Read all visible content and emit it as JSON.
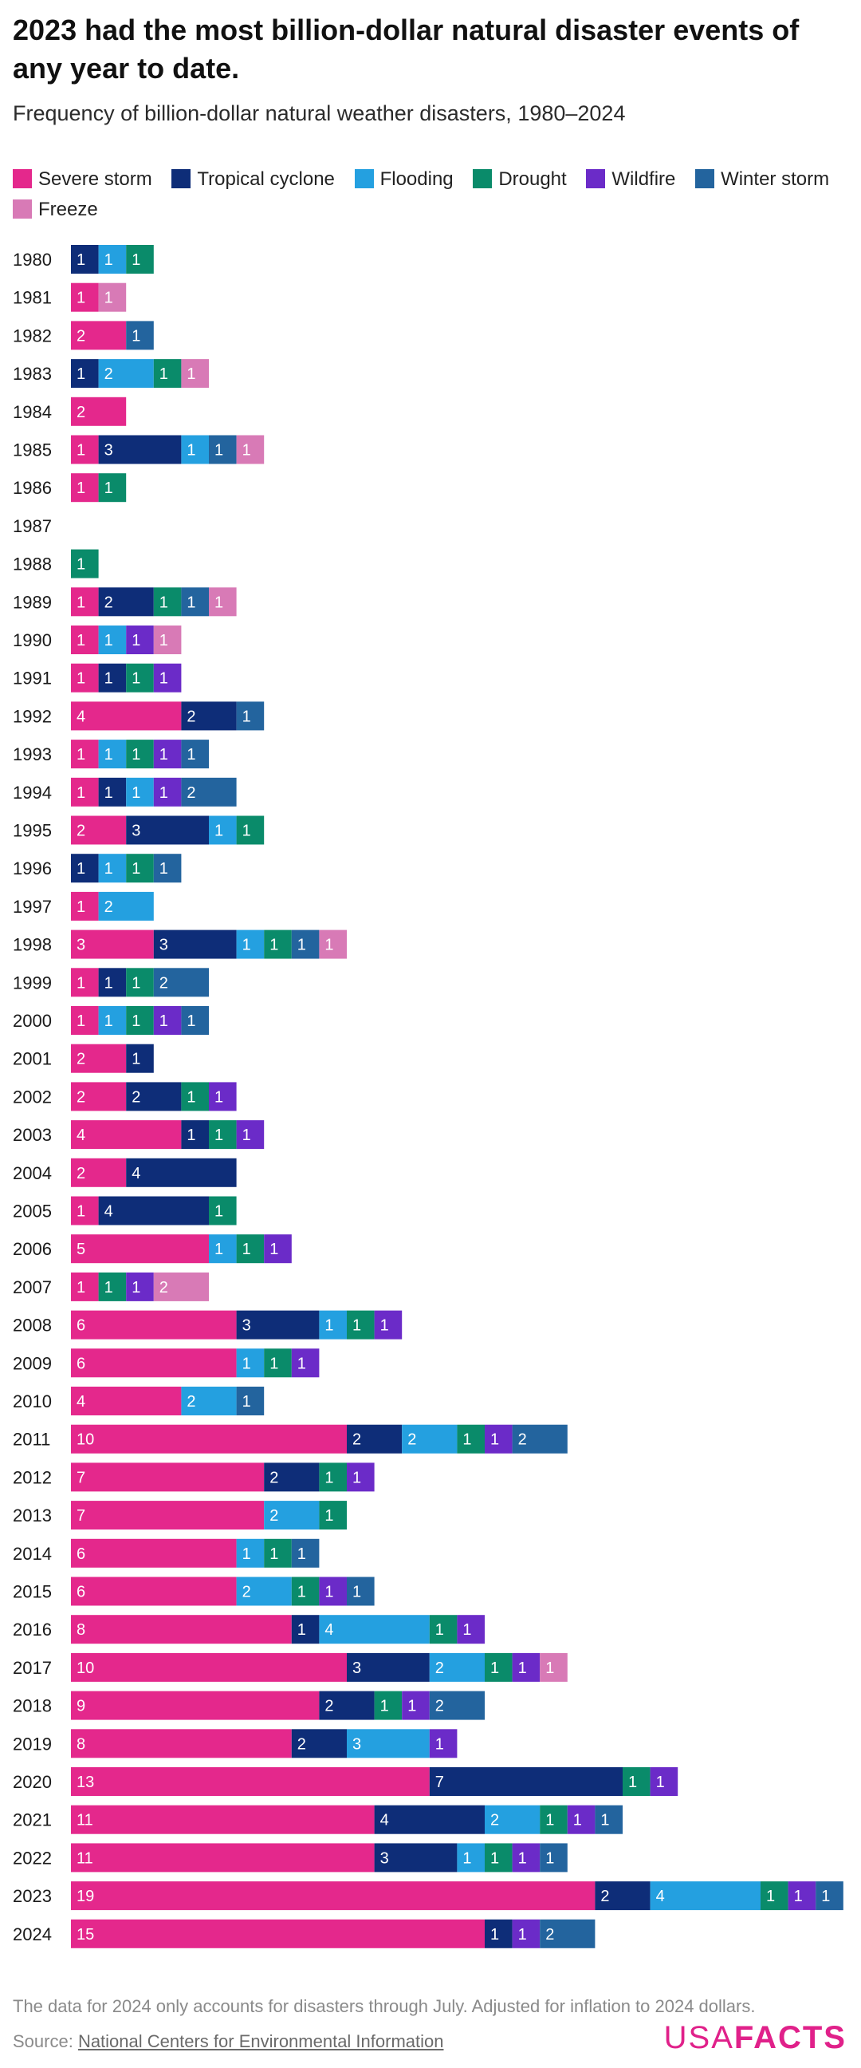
{
  "title": "2023 had the most billion-dollar natural disaster events of any year to date.",
  "subtitle": "Frequency of billion-dollar natural weather disasters, 1980–2024",
  "footnote": "The data for 2024 only accounts for disasters through July. Adjusted for inflation to 2024 dollars.",
  "source": {
    "label": "Source: ",
    "link_text": "National Centers for Environmental Information"
  },
  "brand": {
    "part1": "USA",
    "part2": "FACTS"
  },
  "chart_data": {
    "type": "bar",
    "orientation": "horizontal",
    "stacked": true,
    "grid": false,
    "legend_position": "top",
    "categories": [
      "1980",
      "1981",
      "1982",
      "1983",
      "1984",
      "1985",
      "1986",
      "1987",
      "1988",
      "1989",
      "1990",
      "1991",
      "1992",
      "1993",
      "1994",
      "1995",
      "1996",
      "1997",
      "1998",
      "1999",
      "2000",
      "2001",
      "2002",
      "2003",
      "2004",
      "2005",
      "2006",
      "2007",
      "2008",
      "2009",
      "2010",
      "2011",
      "2012",
      "2013",
      "2014",
      "2015",
      "2016",
      "2017",
      "2018",
      "2019",
      "2020",
      "2021",
      "2022",
      "2023",
      "2024"
    ],
    "series": [
      {
        "name": "Severe storm",
        "color": "#e4288c",
        "values": [
          0,
          1,
          2,
          0,
          2,
          1,
          1,
          0,
          0,
          1,
          1,
          1,
          4,
          1,
          1,
          2,
          0,
          1,
          3,
          1,
          1,
          2,
          2,
          4,
          2,
          1,
          5,
          1,
          6,
          6,
          4,
          10,
          7,
          7,
          6,
          6,
          8,
          10,
          9,
          8,
          13,
          11,
          11,
          19,
          15
        ]
      },
      {
        "name": "Tropical cyclone",
        "color": "#0e2d78",
        "values": [
          1,
          0,
          0,
          1,
          0,
          3,
          0,
          0,
          0,
          2,
          0,
          1,
          2,
          0,
          1,
          3,
          1,
          0,
          3,
          1,
          0,
          1,
          2,
          1,
          4,
          4,
          0,
          0,
          3,
          0,
          0,
          2,
          2,
          0,
          0,
          0,
          1,
          3,
          2,
          2,
          7,
          4,
          3,
          2,
          1
        ]
      },
      {
        "name": "Flooding",
        "color": "#24a0e0",
        "values": [
          1,
          0,
          0,
          2,
          0,
          1,
          0,
          0,
          0,
          0,
          1,
          0,
          0,
          1,
          1,
          1,
          1,
          2,
          1,
          0,
          1,
          0,
          0,
          0,
          0,
          0,
          1,
          0,
          1,
          1,
          2,
          2,
          0,
          2,
          1,
          2,
          4,
          2,
          0,
          3,
          0,
          2,
          1,
          4,
          0
        ]
      },
      {
        "name": "Drought",
        "color": "#0a8b6a",
        "values": [
          1,
          0,
          0,
          1,
          0,
          0,
          1,
          0,
          1,
          1,
          0,
          1,
          0,
          1,
          0,
          1,
          1,
          0,
          1,
          1,
          1,
          0,
          1,
          1,
          0,
          1,
          1,
          1,
          1,
          1,
          0,
          1,
          1,
          1,
          1,
          1,
          1,
          1,
          1,
          0,
          1,
          1,
          1,
          1,
          0
        ]
      },
      {
        "name": "Wildfire",
        "color": "#6b2bc8",
        "values": [
          0,
          0,
          0,
          0,
          0,
          0,
          0,
          0,
          0,
          0,
          1,
          1,
          0,
          1,
          1,
          0,
          0,
          0,
          0,
          0,
          1,
          0,
          1,
          1,
          0,
          0,
          1,
          1,
          1,
          1,
          0,
          1,
          1,
          0,
          0,
          1,
          1,
          1,
          1,
          1,
          1,
          1,
          1,
          1,
          1
        ]
      },
      {
        "name": "Winter storm",
        "color": "#23649e",
        "values": [
          0,
          0,
          1,
          0,
          0,
          1,
          0,
          0,
          0,
          1,
          0,
          0,
          1,
          1,
          2,
          0,
          1,
          0,
          1,
          2,
          1,
          0,
          0,
          0,
          0,
          0,
          0,
          0,
          0,
          0,
          1,
          2,
          0,
          0,
          1,
          1,
          0,
          0,
          2,
          0,
          0,
          1,
          1,
          1,
          2
        ]
      },
      {
        "name": "Freeze",
        "color": "#d87ab6",
        "values": [
          0,
          1,
          0,
          1,
          0,
          1,
          0,
          0,
          0,
          1,
          1,
          0,
          0,
          0,
          0,
          0,
          0,
          0,
          1,
          0,
          0,
          0,
          0,
          0,
          0,
          0,
          0,
          2,
          0,
          0,
          0,
          0,
          0,
          0,
          0,
          0,
          0,
          1,
          0,
          0,
          0,
          0,
          0,
          0,
          0
        ]
      }
    ],
    "xlim": [
      0,
      28
    ]
  }
}
